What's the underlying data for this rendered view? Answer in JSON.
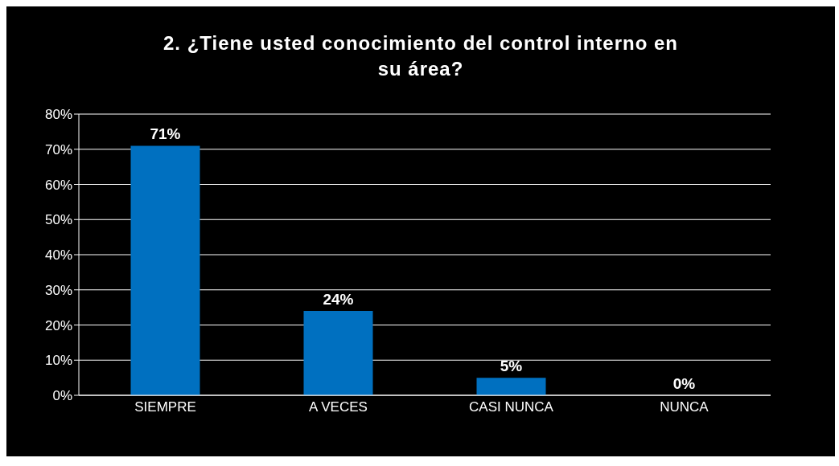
{
  "chart_data": {
    "type": "bar",
    "title": "2. ¿Tiene usted conocimiento del control interno en su área?",
    "categories": [
      "SIEMPRE",
      "A VECES",
      "CASI NUNCA",
      "NUNCA"
    ],
    "values": [
      71,
      24,
      5,
      0
    ],
    "color": "#0070c0",
    "value_labels": [
      "71%",
      "24%",
      "5%",
      "0%"
    ],
    "ylim": [
      0,
      80
    ],
    "yticks": [
      {
        "value": 0,
        "label": "0%"
      },
      {
        "value": 10,
        "label": "10%"
      },
      {
        "value": 20,
        "label": "20%"
      },
      {
        "value": 30,
        "label": "30%"
      },
      {
        "value": 40,
        "label": "40%"
      },
      {
        "value": 50,
        "label": "50%"
      },
      {
        "value": 60,
        "label": "60%"
      },
      {
        "value": 70,
        "label": "70%"
      },
      {
        "value": 80,
        "label": "80%"
      }
    ],
    "grid": "y"
  }
}
